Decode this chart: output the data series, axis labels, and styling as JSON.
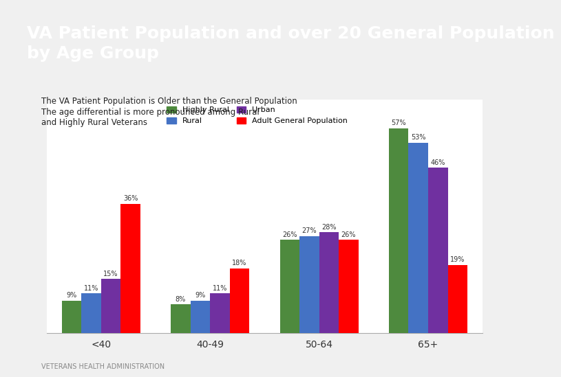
{
  "title": "VA Patient Population and over 20 General Population\nby Age Group",
  "subtitle_line1": "The VA Patient Population is Older than the General Population",
  "subtitle_line2": "The age differential is more pronounced among Rural",
  "subtitle_line3": "and Highly Rural Veterans",
  "categories": [
    "<40",
    "40-49",
    "50-64",
    "65+"
  ],
  "series": {
    "Highly Rural": [
      9,
      8,
      26,
      57
    ],
    "Rural": [
      11,
      9,
      27,
      53
    ],
    "Urban": [
      15,
      11,
      28,
      46
    ],
    "Adult General Population": [
      36,
      18,
      26,
      19
    ]
  },
  "colors": {
    "Highly Rural": "#4e8a3e",
    "Rural": "#4472c4",
    "Urban": "#7030a0",
    "Adult General Population": "#ff0000"
  },
  "footer": "VETERANS HEALTH ADMINISTRATION",
  "header_bg": "#3fa0c8",
  "bar_width": 0.18,
  "ylim": [
    0,
    65
  ],
  "title_fontsize": 18,
  "label_fontsize": 7
}
